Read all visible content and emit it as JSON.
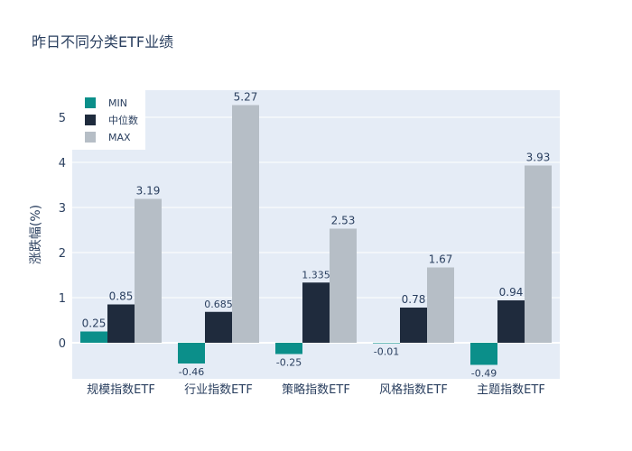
{
  "chart_data": {
    "type": "bar",
    "title": "昨日不同分类ETF业绩",
    "xlabel": "",
    "ylabel": "涨跌幅(%)",
    "ylim": [
      -0.8,
      5.6
    ],
    "yticks": [
      0,
      1,
      2,
      3,
      4,
      5
    ],
    "grid": true,
    "legend_position": "top-left",
    "categories": [
      "规模指数ETF",
      "行业指数ETF",
      "策略指数ETF",
      "风格指数ETF",
      "主题指数ETF"
    ],
    "series": [
      {
        "name": "MIN",
        "color": "#0b8f8a",
        "values": [
          0.25,
          -0.46,
          -0.25,
          -0.01,
          -0.49
        ],
        "labels": [
          "0.25",
          "-0.46",
          "-0.25",
          "-0.01",
          "-0.49"
        ]
      },
      {
        "name": "中位数",
        "color": "#1f2b3d",
        "values": [
          0.85,
          0.685,
          1.335,
          0.78,
          0.94
        ],
        "labels": [
          "0.85",
          "0.685",
          "1.335",
          "0.78",
          "0.94"
        ]
      },
      {
        "name": "MAX",
        "color": "#b6bec6",
        "values": [
          3.19,
          5.27,
          2.53,
          1.67,
          3.93
        ],
        "labels": [
          "3.19",
          "5.27",
          "2.53",
          "1.67",
          "3.93"
        ]
      }
    ]
  }
}
